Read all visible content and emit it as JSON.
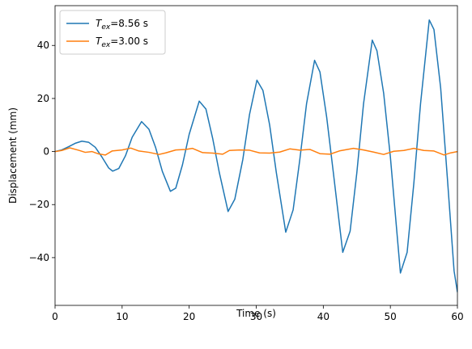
{
  "chart_data": {
    "type": "line",
    "title": "",
    "xlabel": "Time (s)",
    "ylabel": "Displacement (mm)",
    "xlim": [
      0,
      60
    ],
    "ylim": [
      -58,
      55
    ],
    "xticks": [
      0,
      10,
      20,
      30,
      40,
      50,
      60
    ],
    "yticks": [
      -40,
      -20,
      0,
      20,
      40
    ],
    "grid": false,
    "legend_position": "top-left",
    "series": [
      {
        "name_main": "T",
        "name_sub": "ex",
        "name_rest": "=8.56 s",
        "color": "#1f77b4",
        "points": [
          [
            0,
            0
          ],
          [
            1,
            0.6
          ],
          [
            2,
            1.8
          ],
          [
            3,
            3.1
          ],
          [
            4,
            3.9
          ],
          [
            5,
            3.5
          ],
          [
            6,
            1.6
          ],
          [
            7,
            -2.1
          ],
          [
            8,
            -6.2
          ],
          [
            8.6,
            -7.4
          ],
          [
            9.5,
            -6.4
          ],
          [
            10.5,
            -1.6
          ],
          [
            11.5,
            5.4
          ],
          [
            12.9,
            11.3
          ],
          [
            14,
            8.4
          ],
          [
            15,
            1.5
          ],
          [
            16,
            -7.5
          ],
          [
            17.2,
            -15
          ],
          [
            18,
            -13.8
          ],
          [
            19,
            -5
          ],
          [
            20,
            6.5
          ],
          [
            21.5,
            19
          ],
          [
            22.5,
            16
          ],
          [
            23.5,
            5
          ],
          [
            24.5,
            -8
          ],
          [
            25.8,
            -22.6
          ],
          [
            26.8,
            -18
          ],
          [
            28,
            -3
          ],
          [
            29,
            14
          ],
          [
            30.1,
            26.9
          ],
          [
            31,
            23
          ],
          [
            32,
            10
          ],
          [
            33,
            -8
          ],
          [
            34.4,
            -30.4
          ],
          [
            35.5,
            -22
          ],
          [
            36.5,
            -3
          ],
          [
            37.5,
            18
          ],
          [
            38.7,
            34.4
          ],
          [
            39.5,
            30
          ],
          [
            40.5,
            13
          ],
          [
            41.5,
            -8
          ],
          [
            42.9,
            -38
          ],
          [
            44,
            -30
          ],
          [
            45,
            -8
          ],
          [
            46,
            18
          ],
          [
            47.3,
            42
          ],
          [
            48,
            38
          ],
          [
            49,
            22
          ],
          [
            50,
            -2
          ],
          [
            51.5,
            -45.8
          ],
          [
            52.5,
            -38
          ],
          [
            53.5,
            -12
          ],
          [
            54.5,
            18
          ],
          [
            55.8,
            49.6
          ],
          [
            56.5,
            46
          ],
          [
            57.5,
            24
          ],
          [
            58.5,
            -10
          ],
          [
            59.5,
            -45
          ],
          [
            60,
            -53
          ]
        ]
      },
      {
        "name_main": "T",
        "name_sub": "ex",
        "name_rest": "=3.00 s",
        "color": "#ff7f0e",
        "points": [
          [
            0,
            0
          ],
          [
            1,
            0.4
          ],
          [
            2.2,
            1.4
          ],
          [
            3.5,
            0.5
          ],
          [
            4.5,
            -0.3
          ],
          [
            5.5,
            0
          ],
          [
            6.5,
            -0.9
          ],
          [
            7.5,
            -1.3
          ],
          [
            8.5,
            0.2
          ],
          [
            10,
            0.6
          ],
          [
            11.3,
            1.3
          ],
          [
            12.5,
            0.2
          ],
          [
            14,
            -0.3
          ],
          [
            15.5,
            -1.1
          ],
          [
            16.5,
            -0.5
          ],
          [
            18,
            0.6
          ],
          [
            19.5,
            0.8
          ],
          [
            20.5,
            1.2
          ],
          [
            22,
            -0.4
          ],
          [
            23.5,
            -0.6
          ],
          [
            25,
            -1.0
          ],
          [
            26,
            0.4
          ],
          [
            27.5,
            0.6
          ],
          [
            29,
            0.5
          ],
          [
            30.5,
            -0.5
          ],
          [
            32,
            -0.6
          ],
          [
            33.5,
            -0.2
          ],
          [
            35,
            1.0
          ],
          [
            36.5,
            0.5
          ],
          [
            38,
            0.8
          ],
          [
            39.5,
            -0.8
          ],
          [
            41,
            -1.0
          ],
          [
            42.5,
            0.3
          ],
          [
            44.5,
            1.2
          ],
          [
            46,
            0.6
          ],
          [
            47.5,
            -0.2
          ],
          [
            49,
            -1.1
          ],
          [
            50.5,
            0.1
          ],
          [
            52,
            0.4
          ],
          [
            53.5,
            1.2
          ],
          [
            55,
            0.4
          ],
          [
            56.5,
            0.2
          ],
          [
            58,
            -1.3
          ],
          [
            59,
            -0.5
          ],
          [
            60,
            0
          ]
        ]
      }
    ]
  }
}
